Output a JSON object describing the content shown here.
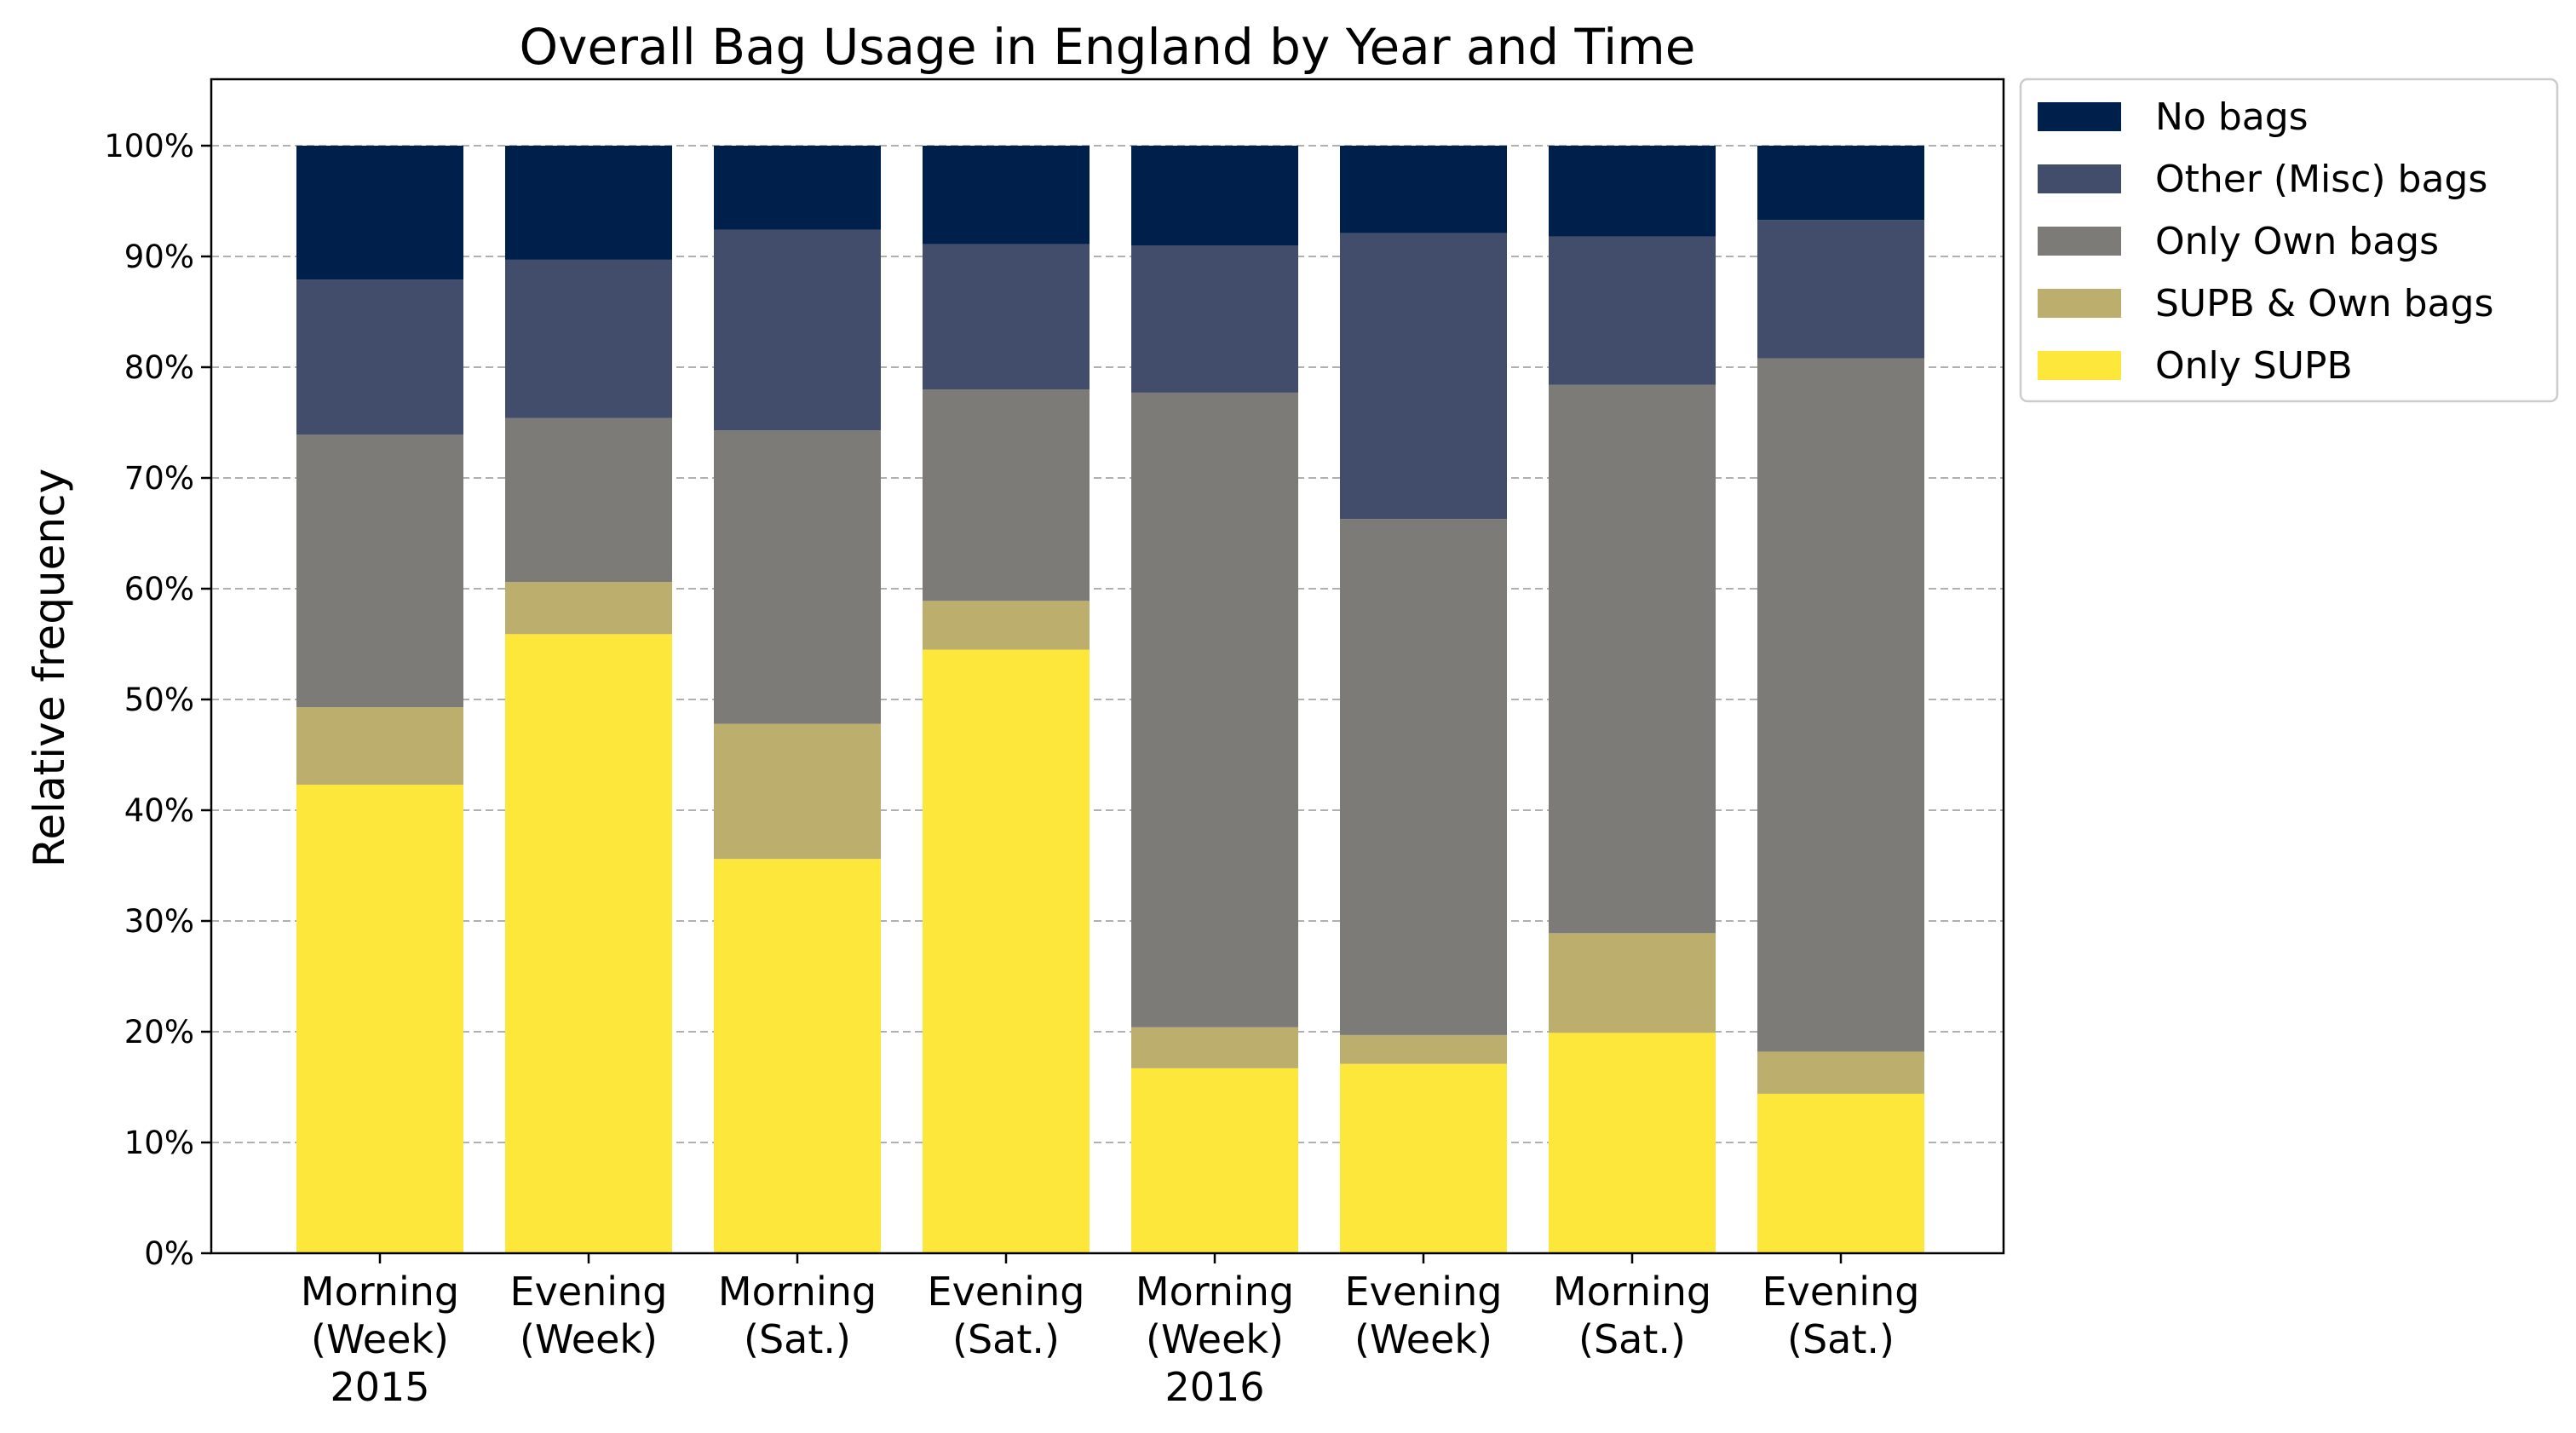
{
  "chart_data": {
    "type": "bar",
    "stacked": true,
    "title": "Overall Bag Usage in England by Year and Time",
    "xlabel": "",
    "ylabel": "Relative frequency",
    "ylim": [
      0,
      100
    ],
    "ytick_values": [
      0,
      10,
      20,
      30,
      40,
      50,
      60,
      70,
      80,
      90,
      100
    ],
    "ytick_labels": [
      "0%",
      "10%",
      "20%",
      "30%",
      "40%",
      "50%",
      "60%",
      "70%",
      "80%",
      "90%",
      "100%"
    ],
    "grid": "horizontal dashed",
    "legend_position": "outside top-right",
    "categories": [
      [
        "Morning",
        "(Week)",
        "2015"
      ],
      [
        "Evening",
        "(Week)"
      ],
      [
        "Morning",
        "(Sat.)"
      ],
      [
        "Evening",
        "(Sat.)"
      ],
      [
        "Morning",
        "(Week)",
        "2016"
      ],
      [
        "Evening",
        "(Week)"
      ],
      [
        "Morning",
        "(Sat.)"
      ],
      [
        "Evening",
        "(Sat.)"
      ]
    ],
    "series": [
      {
        "name": "Only SUPB",
        "color": "#fde73a",
        "values": [
          42.3,
          55.9,
          35.6,
          54.5,
          16.7,
          17.1,
          19.9,
          14.4
        ]
      },
      {
        "name": "SUPB & Own bags",
        "color": "#bcaf6e",
        "values": [
          7.0,
          4.7,
          12.2,
          4.4,
          3.7,
          2.6,
          9.0,
          3.8
        ]
      },
      {
        "name": "Only Own bags",
        "color": "#7c7b78",
        "values": [
          24.6,
          14.8,
          26.5,
          19.1,
          57.3,
          46.6,
          49.5,
          62.6
        ]
      },
      {
        "name": "Other (Misc) bags",
        "color": "#414d6b",
        "values": [
          14.0,
          14.3,
          18.1,
          13.1,
          13.3,
          25.8,
          13.4,
          12.5
        ]
      },
      {
        "name": "No bags",
        "color": "#00204c",
        "values": [
          12.1,
          10.3,
          7.6,
          8.9,
          9.0,
          7.9,
          8.2,
          6.7
        ]
      }
    ]
  }
}
